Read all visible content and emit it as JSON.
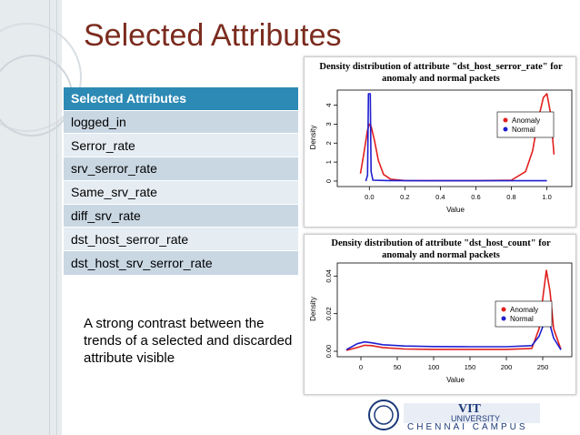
{
  "slide": {
    "title": "Selected Attributes",
    "table": {
      "header": "Selected Attributes",
      "rows": [
        "logged_in",
        "Serror_rate",
        "srv_serror_rate",
        "Same_srv_rate",
        "diff_srv_rate",
        "dst_host_serror_rate",
        "dst_host_srv_serror_rate"
      ]
    },
    "note": "A strong contrast between the trends of a selected and discarded attribute visible",
    "logo": {
      "main": "VIT",
      "sub": "UNIVERSITY",
      "campus": "CHENNAI CAMPUS"
    }
  },
  "colors": {
    "title": "#7b2b1e",
    "table_header": "#2d8ab5",
    "anomaly": "#e0201e",
    "normal": "#1f1fd0"
  },
  "chart_data": [
    {
      "type": "line",
      "title": "Density distribution of attribute \"dst_host_serror_rate\" for anomaly and normal packets",
      "xlabel": "Value",
      "ylabel": "Density",
      "xlim": [
        -0.15,
        1.12
      ],
      "ylim": [
        0,
        4.6
      ],
      "xticks": [
        "0.0",
        "0.2",
        "0.4",
        "0.6",
        "0.8",
        "1.0"
      ],
      "yticks": [
        "0",
        "1",
        "2",
        "3",
        "4"
      ],
      "legend": {
        "position": "top-right",
        "entries": [
          "Anomaly",
          "Normal"
        ]
      },
      "series": [
        {
          "name": "Anomaly",
          "color": "#e0201e",
          "x": [
            -0.05,
            -0.03,
            -0.01,
            0.0,
            0.01,
            0.03,
            0.05,
            0.08,
            0.12,
            0.2,
            0.4,
            0.6,
            0.8,
            0.88,
            0.92,
            0.95,
            0.98,
            1.0,
            1.02,
            1.04
          ],
          "y": [
            0.4,
            1.5,
            2.7,
            3.0,
            2.9,
            2.1,
            1.1,
            0.35,
            0.1,
            0.03,
            0.02,
            0.02,
            0.05,
            0.5,
            1.6,
            3.2,
            4.4,
            4.6,
            3.6,
            1.4
          ]
        },
        {
          "name": "Normal",
          "color": "#1f1fd0",
          "x": [
            -0.02,
            -0.01,
            -0.005,
            0.0,
            0.005,
            0.01,
            0.02,
            0.1,
            0.3,
            0.5,
            0.7,
            0.9,
            1.0
          ],
          "y": [
            0.0,
            0.3,
            4.6,
            4.6,
            4.6,
            0.5,
            0.05,
            0.03,
            0.02,
            0.02,
            0.02,
            0.02,
            0.02
          ]
        }
      ]
    },
    {
      "type": "line",
      "title": "Density distribution of attribute \"dst_host_count\" for anomaly and normal packets",
      "xlabel": "Value",
      "ylabel": "Density",
      "xlim": [
        -25,
        285
      ],
      "ylim": [
        0,
        0.045
      ],
      "xticks": [
        "0",
        "50",
        "100",
        "150",
        "200",
        "250"
      ],
      "yticks": [
        "0.00",
        "0.02",
        "0.04"
      ],
      "legend": {
        "position": "right",
        "entries": [
          "Anomaly",
          "Normal"
        ]
      },
      "series": [
        {
          "name": "Anomaly",
          "color": "#e0201e",
          "x": [
            -20,
            -5,
            5,
            15,
            30,
            60,
            100,
            150,
            200,
            235,
            245,
            250,
            255,
            260,
            265,
            275
          ],
          "y": [
            0.0005,
            0.002,
            0.0032,
            0.003,
            0.002,
            0.0012,
            0.001,
            0.001,
            0.001,
            0.0015,
            0.012,
            0.028,
            0.043,
            0.032,
            0.012,
            0.001
          ]
        },
        {
          "name": "Normal",
          "color": "#1f1fd0",
          "x": [
            -20,
            -5,
            5,
            15,
            30,
            60,
            100,
            150,
            200,
            235,
            245,
            250,
            255,
            260,
            265,
            275
          ],
          "y": [
            0.0008,
            0.004,
            0.005,
            0.0045,
            0.0035,
            0.0028,
            0.0025,
            0.0024,
            0.0024,
            0.003,
            0.008,
            0.013,
            0.016,
            0.014,
            0.007,
            0.0008
          ]
        }
      ]
    }
  ]
}
